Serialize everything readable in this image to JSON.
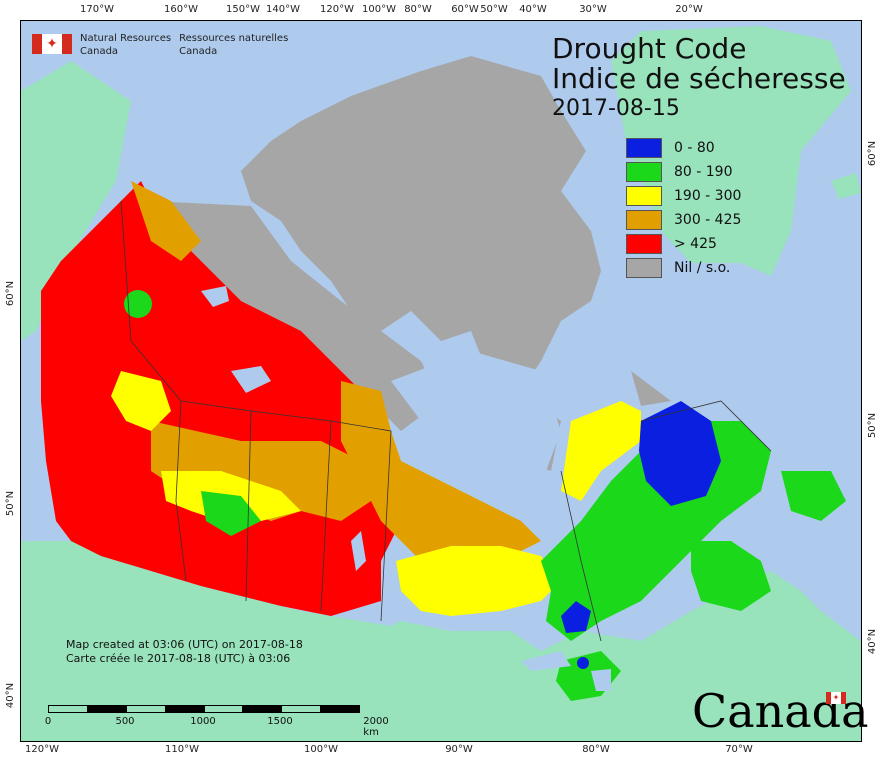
{
  "map": {
    "title_en": "Drought Code",
    "title_fr": "Indice de sécheresse",
    "date": "2017-08-15",
    "legend": [
      {
        "label": "0 - 80",
        "color": "#0a1fe0"
      },
      {
        "label": "80 - 190",
        "color": "#1bd81b"
      },
      {
        "label": "190 - 300",
        "color": "#ffff00"
      },
      {
        "label": "300 - 425",
        "color": "#e2a000"
      },
      {
        "label": "> 425",
        "color": "#ff0000"
      },
      {
        "label": "Nil / s.o.",
        "color": "#a6a6a6"
      }
    ],
    "logo": {
      "org_en_line1": "Natural Resources",
      "org_en_line2": "Canada",
      "org_fr_line1": "Ressources naturelles",
      "org_fr_line2": "Canada"
    },
    "created_en": "Map created at 03:06 (UTC) on 2017-08-18",
    "created_fr": "Carte créée le 2017-08-18 (UTC) à 03:06",
    "wordmark": "Canada",
    "scale": {
      "labels": [
        "0",
        "500",
        "1000",
        "1500",
        "2000 km"
      ]
    },
    "top_ticks": [
      "170°W",
      "160°W",
      "150°W",
      "140°W",
      "120°W",
      "100°W",
      "80°W",
      "60°W",
      "50°W",
      "40°W",
      "30°W",
      "20°W"
    ],
    "bottom_ticks": [
      "120°W",
      "110°W",
      "100°W",
      "90°W",
      "80°W",
      "70°W"
    ],
    "left_ticks": [
      "60°N",
      "50°N",
      "40°N"
    ],
    "right_ticks": [
      "60°N",
      "50°N",
      "40°N"
    ],
    "colors": {
      "ocean": "#aecbee",
      "other_land": "#98e2bc",
      "nil": "#a6a6a6"
    }
  }
}
